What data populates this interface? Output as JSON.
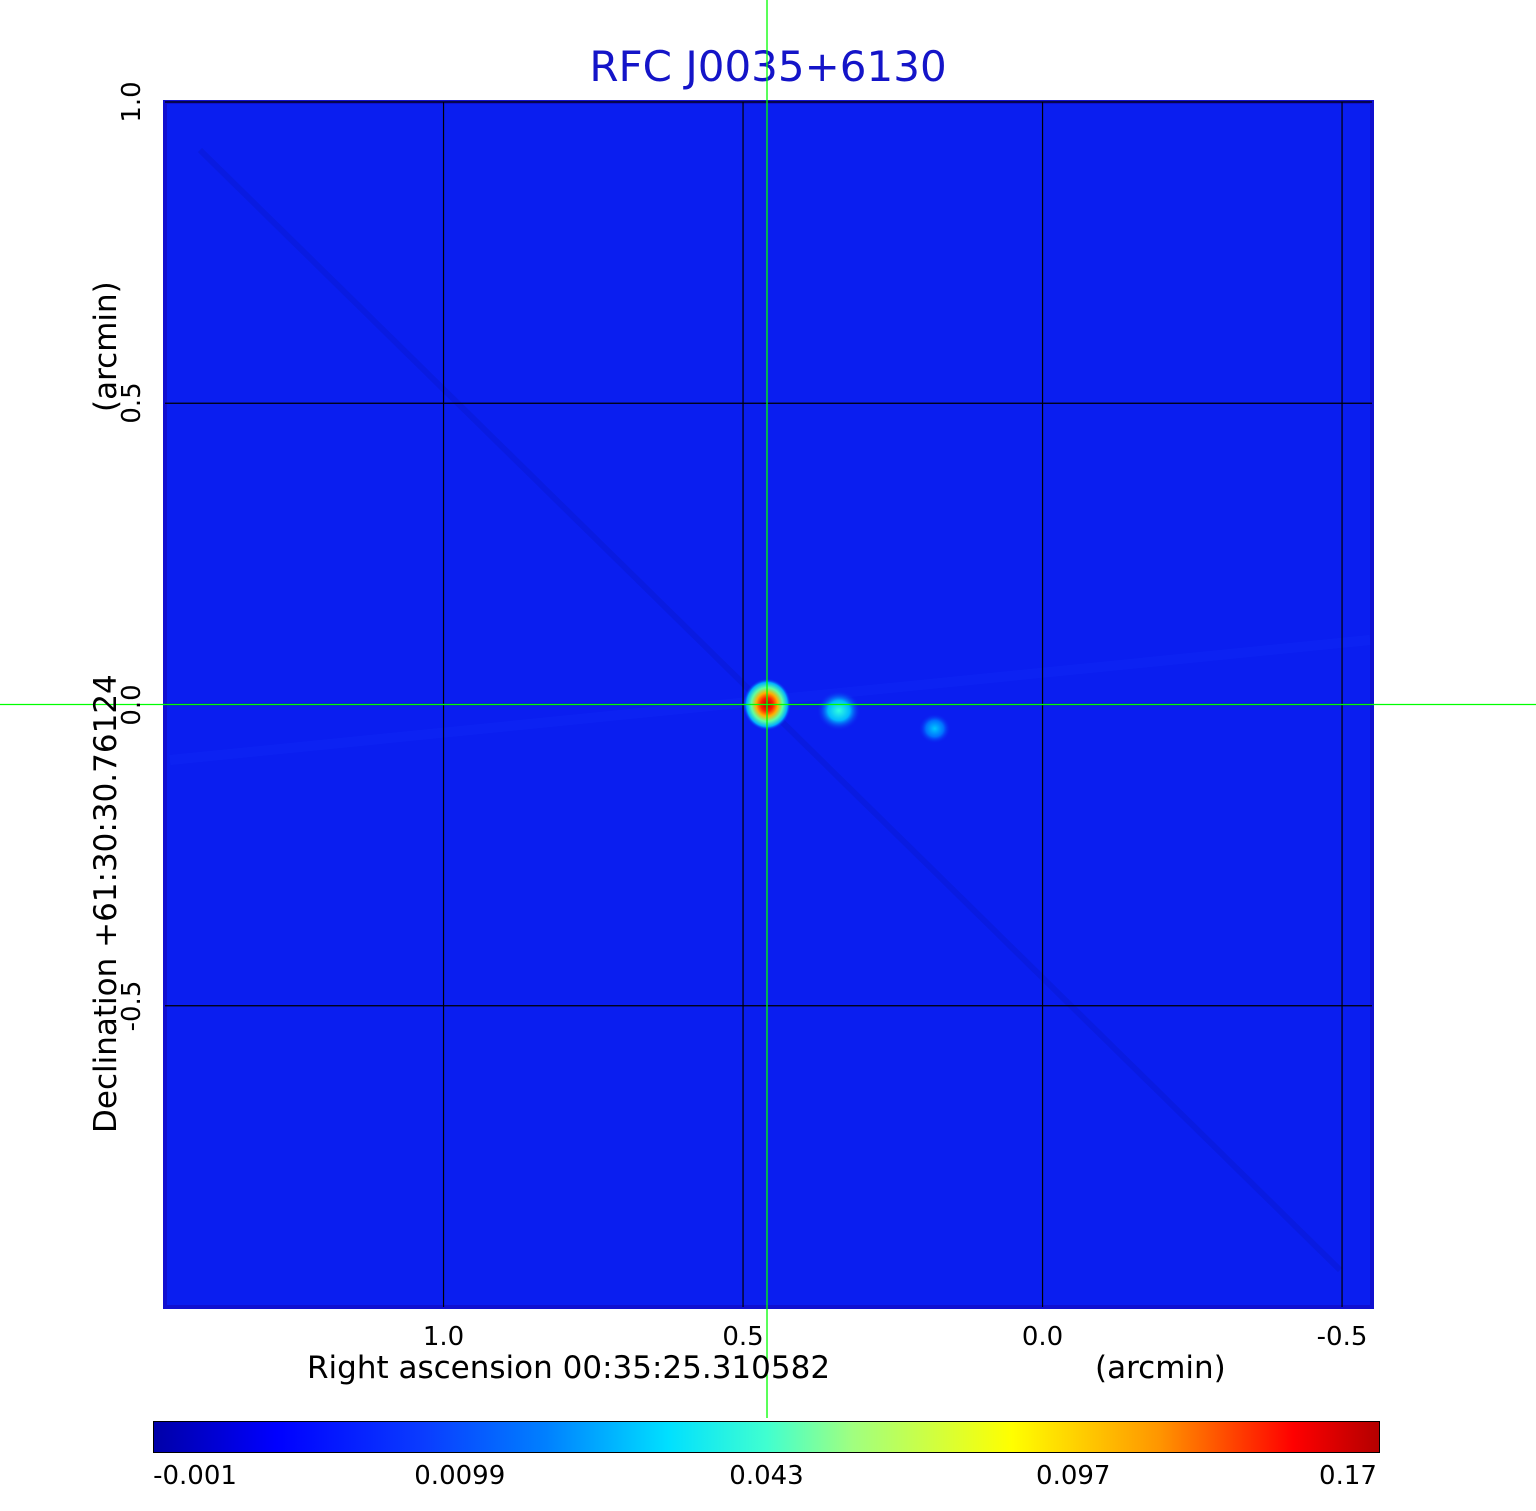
{
  "chart_data": {
    "type": "heatmap",
    "title": "RFC J0035+6130",
    "xlabel": "Right ascension  00:35:25.310582",
    "xunit": "(arcmin)",
    "ylabel": "Declination  +61:30:30.76124",
    "yunit": "(arcmin)",
    "x_ticks": [
      {
        "value": 1.0,
        "label": "1.0"
      },
      {
        "value": 0.5,
        "label": "0.5"
      },
      {
        "value": 0.0,
        "label": "0.0"
      },
      {
        "value": -0.5,
        "label": "-0.5"
      }
    ],
    "y_ticks": [
      {
        "value": 1.0,
        "label": "1.0"
      },
      {
        "value": 0.5,
        "label": "0.5"
      },
      {
        "value": 0.0,
        "label": "0.0"
      },
      {
        "value": -0.5,
        "label": "-0.5"
      }
    ],
    "xlim": [
      1.465,
      -0.55
    ],
    "ylim": [
      -1.0,
      1.0
    ],
    "grid": true,
    "crosshair": {
      "x": 0.46,
      "y": 0.0
    },
    "colorbar": {
      "colormap": "jet",
      "ticks": [
        {
          "value": -0.001,
          "label": "-0.001"
        },
        {
          "value": 0.0099,
          "label": "0.0099"
        },
        {
          "value": 0.043,
          "label": "0.043"
        },
        {
          "value": 0.097,
          "label": "0.097"
        },
        {
          "value": 0.17,
          "label": "0.17"
        }
      ]
    },
    "sources": [
      {
        "x": 0.46,
        "y": 0.0,
        "peak": 0.17
      },
      {
        "x": 0.34,
        "y": -0.01,
        "peak": 0.035
      },
      {
        "x": 0.18,
        "y": -0.04,
        "peak": 0.02
      }
    ],
    "colors": {
      "background": "#0a1ef0",
      "grid": "#000000",
      "crosshair": "#00ff00",
      "title": "#1414c8"
    }
  }
}
